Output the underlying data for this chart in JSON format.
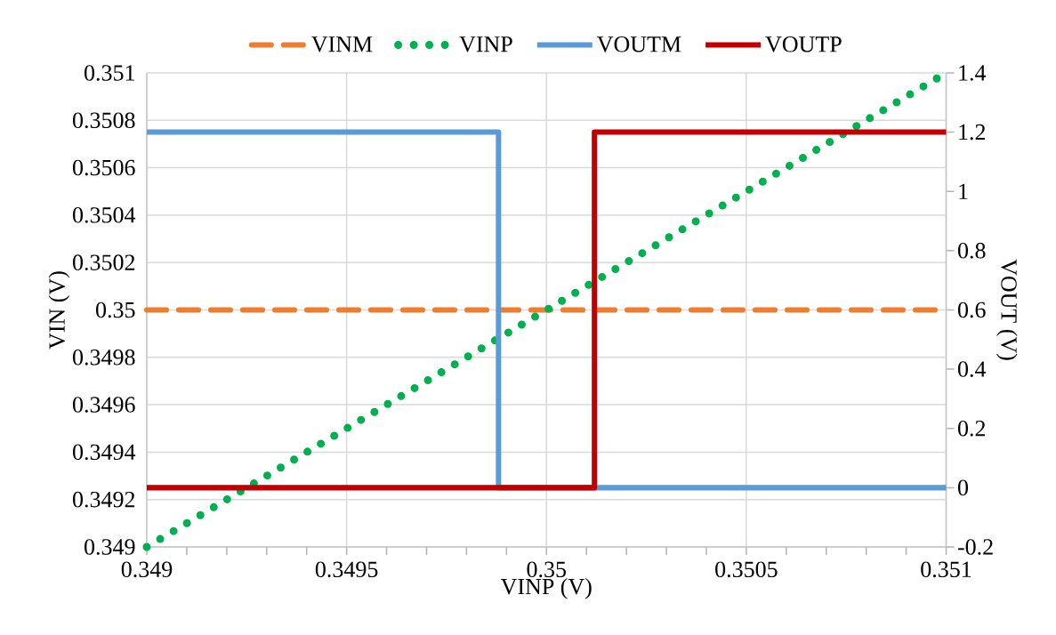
{
  "chart_data": {
    "type": "line",
    "xlabel": "VINP (V)",
    "ylabel": "VIN (V)",
    "y2label": "VOUT (V)",
    "xlim": [
      0.349,
      0.351
    ],
    "xticks": [
      0.349,
      {
        "value": 0.3491,
        "label": null
      },
      {
        "value": 0.3492,
        "label": null
      },
      {
        "value": 0.3493,
        "label": null
      },
      {
        "value": 0.3494,
        "label": null
      },
      0.3495,
      {
        "value": 0.3496,
        "label": null
      },
      {
        "value": 0.3497,
        "label": null
      },
      {
        "value": 0.3498,
        "label": null
      },
      {
        "value": 0.3499,
        "label": null
      },
      0.35,
      {
        "value": 0.3501,
        "label": null
      },
      {
        "value": 0.3502,
        "label": null
      },
      {
        "value": 0.3503,
        "label": null
      },
      {
        "value": 0.3504,
        "label": null
      },
      0.3505,
      {
        "value": 0.3506,
        "label": null
      },
      {
        "value": 0.3507,
        "label": null
      },
      {
        "value": 0.3508,
        "label": null
      },
      {
        "value": 0.3509,
        "label": null
      },
      0.351
    ],
    "ylim": [
      0.349,
      0.351
    ],
    "yticks": [
      0.349,
      0.3492,
      0.3494,
      0.3496,
      0.3498,
      0.35,
      0.3502,
      0.3504,
      0.3506,
      0.3508,
      0.351
    ],
    "y2lim": [
      -0.2,
      1.4
    ],
    "y2ticks": [
      -0.2,
      0,
      0.2,
      0.4,
      0.6,
      0.8,
      1,
      1.2,
      1.4
    ],
    "grid": true,
    "legend": "top",
    "series": [
      {
        "name": "VINM",
        "color": "#ed7d31",
        "line_style": "dashed",
        "x": [
          0.349,
          0.351
        ],
        "values": [
          0.35,
          0.35
        ]
      },
      {
        "name": "VINP",
        "color": "#00b050",
        "line_style": "dotted",
        "x": [
          0.349,
          0.351
        ],
        "values": [
          0.349,
          0.351
        ]
      },
      {
        "name": "VOUTM",
        "color": "#5b9bd5",
        "line_style": "solid",
        "axis": "y2",
        "x": [
          0.349,
          0.34988,
          0.34988,
          0.351
        ],
        "values": [
          1.2,
          1.2,
          0,
          0
        ]
      },
      {
        "name": "VOUTP",
        "color": "#c00000",
        "line_style": "solid",
        "axis": "y2",
        "x": [
          0.349,
          0.35012,
          0.35012,
          0.351
        ],
        "values": [
          0,
          0,
          1.2,
          1.2
        ]
      }
    ]
  }
}
